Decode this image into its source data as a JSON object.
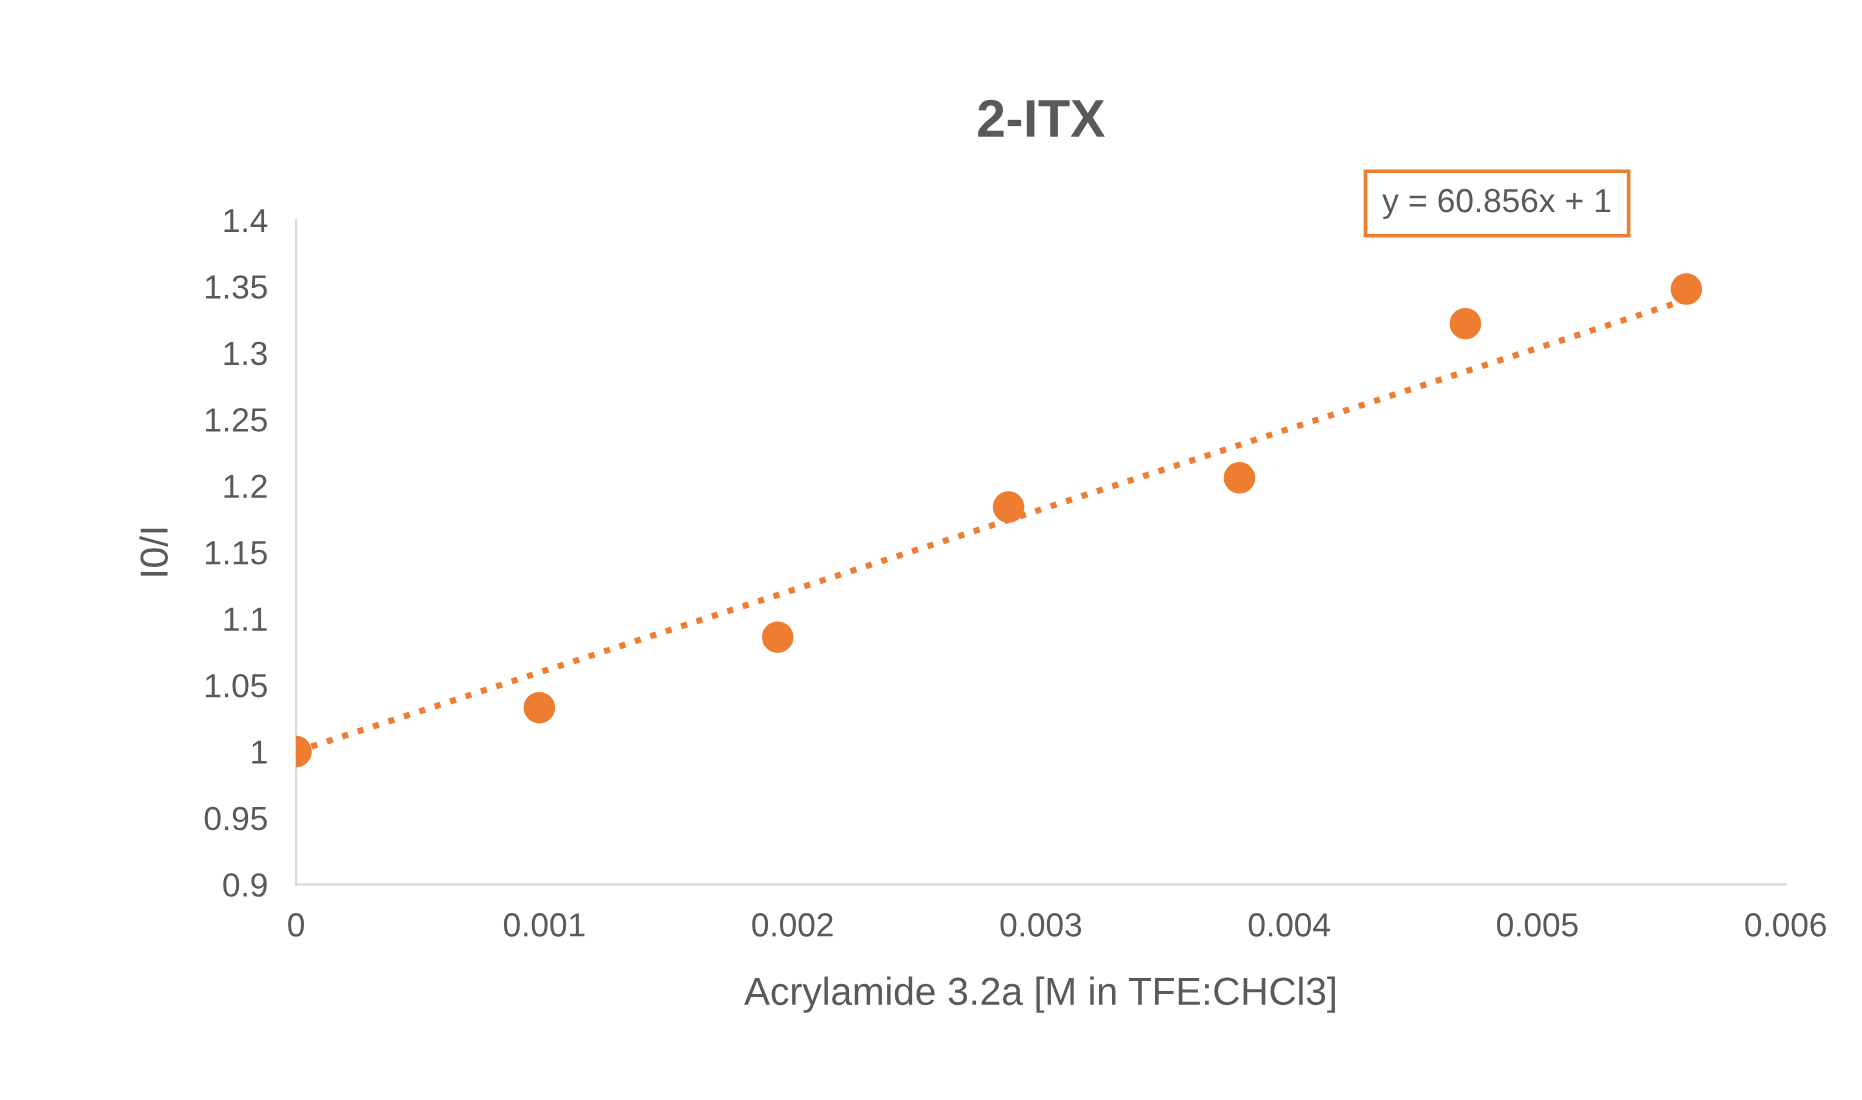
{
  "chart_data": {
    "type": "scatter",
    "title": "2-ITX",
    "xlabel": "Acrylamide 3.2a [M in TFE:CHCl3]",
    "ylabel": "I0/I",
    "series": [
      {
        "color": "#ed7d31",
        "marker": "circle",
        "x": [
          0,
          0.00098,
          0.00194,
          0.00287,
          0.0038,
          0.00471,
          0.0056
        ],
        "values": [
          1.0,
          1.033,
          1.086,
          1.184,
          1.206,
          1.322,
          1.348
        ]
      },
      {
        "type": "line",
        "color": "#ed7d31",
        "line_style": "dotted",
        "marker": "none",
        "x": [
          0,
          0.0056
        ],
        "values": [
          1.0,
          1.34
        ]
      }
    ],
    "annotations": [
      "y = 60.856x + 1"
    ],
    "xlim": [
      0,
      0.006
    ],
    "xticks": [
      0,
      0.001,
      0.002,
      0.003,
      0.004,
      0.005,
      0.006
    ],
    "ylim": [
      0.9,
      1.4
    ],
    "yticks": [
      0.9,
      0.95,
      1,
      1.05,
      1.1,
      1.15,
      1.2,
      1.25,
      1.3,
      1.35,
      1.4
    ],
    "grid": false,
    "legend": false
  }
}
